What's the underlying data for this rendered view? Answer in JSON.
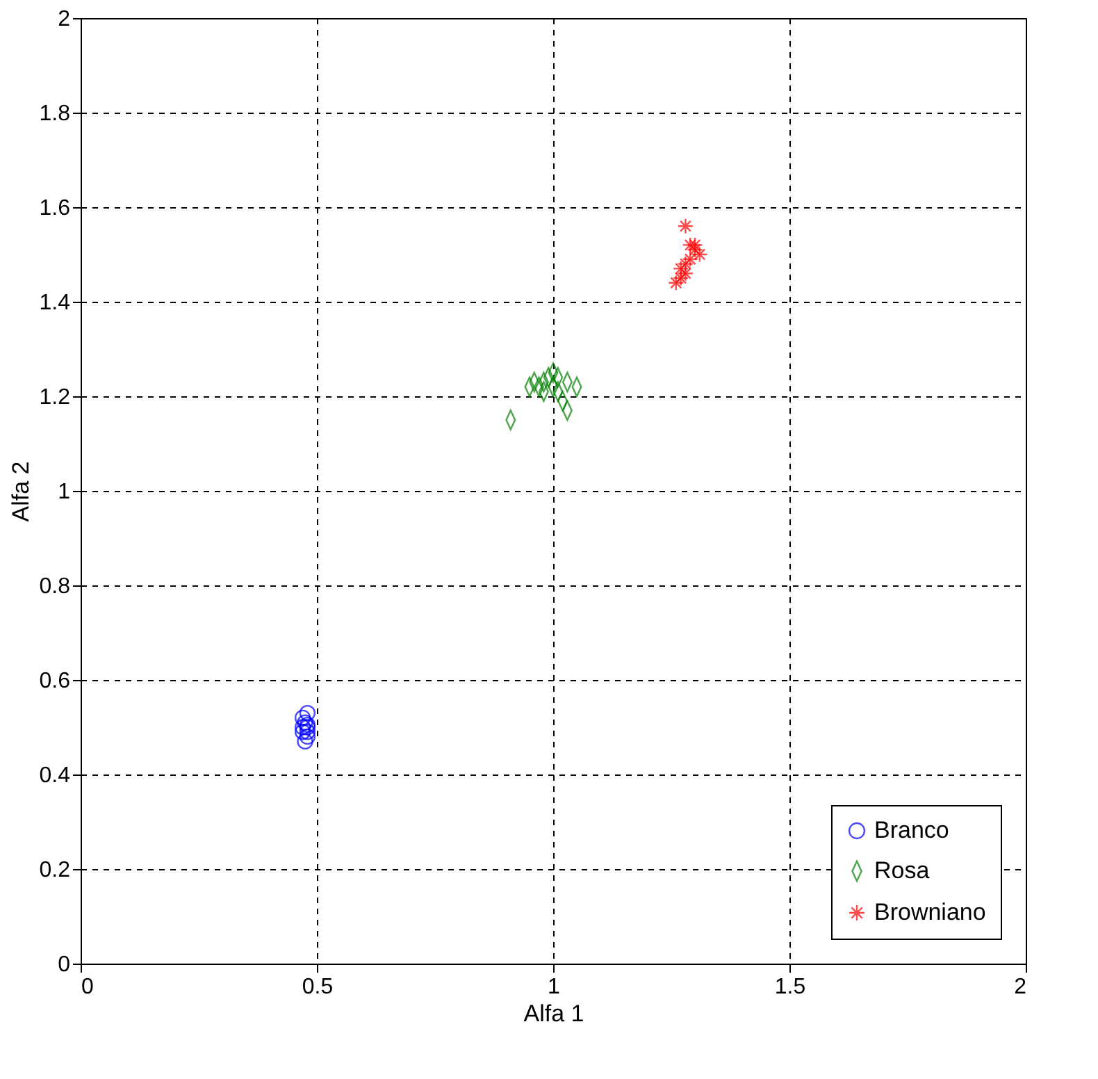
{
  "chart_data": {
    "type": "scatter",
    "xlabel": "Alfa 1",
    "ylabel": "Alfa 2",
    "xlim": [
      0,
      2
    ],
    "ylim": [
      0,
      2
    ],
    "xticks": [
      0,
      0.5,
      1,
      1.5,
      2
    ],
    "yticks": [
      0,
      0.2,
      0.4,
      0.6,
      0.8,
      1,
      1.2,
      1.4,
      1.6,
      1.8,
      2
    ],
    "grid": true,
    "legend": "bottom right",
    "series": [
      {
        "name": "Branco",
        "color": "#0000ff",
        "marker": "circle",
        "x": [
          0.47,
          0.48,
          0.475,
          0.48,
          0.47,
          0.48,
          0.475,
          0.48,
          0.47,
          0.48
        ],
        "values": [
          0.52,
          0.53,
          0.51,
          0.5,
          0.49,
          0.48,
          0.47,
          0.505,
          0.5,
          0.49
        ]
      },
      {
        "name": "Rosa",
        "color": "#008000",
        "marker": "diamond",
        "x": [
          0.91,
          0.95,
          0.96,
          0.97,
          0.98,
          0.99,
          1.0,
          1.0,
          1.01,
          1.02,
          1.03,
          1.03,
          1.05,
          0.98,
          1.01
        ],
        "values": [
          1.15,
          1.22,
          1.23,
          1.22,
          1.23,
          1.24,
          1.25,
          1.22,
          1.21,
          1.19,
          1.17,
          1.23,
          1.22,
          1.21,
          1.24
        ]
      },
      {
        "name": "Browniano",
        "color": "#ff0000",
        "marker": "cross",
        "x": [
          1.28,
          1.29,
          1.3,
          1.31,
          1.29,
          1.28,
          1.27,
          1.27,
          1.26,
          1.28,
          1.3
        ],
        "values": [
          1.56,
          1.52,
          1.51,
          1.5,
          1.49,
          1.48,
          1.47,
          1.45,
          1.44,
          1.46,
          1.52
        ]
      }
    ]
  }
}
